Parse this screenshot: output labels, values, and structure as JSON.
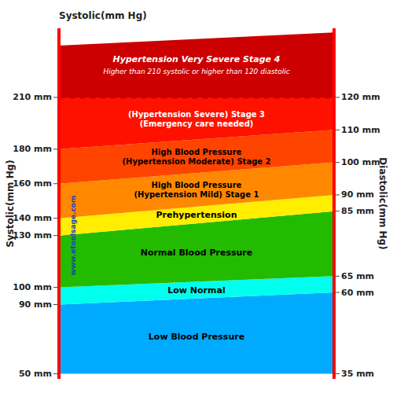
{
  "chart_data": {
    "type": "zones",
    "ylabel": "Systolic(mm Hg)",
    "y2label": "Diastolic(mm Hg)",
    "watermark": "www.etoolsage.com",
    "ylim": [
      47,
      250
    ],
    "yticks": [
      {
        "value": 50,
        "label": "50 mm"
      },
      {
        "value": 90,
        "label": "90 mm"
      },
      {
        "value": 100,
        "label": "100 mm"
      },
      {
        "value": 130,
        "label": "130 mm"
      },
      {
        "value": 140,
        "label": "140 mm"
      },
      {
        "value": 160,
        "label": "160 mm"
      },
      {
        "value": 180,
        "label": "180 mm"
      },
      {
        "value": 210,
        "label": "210 mm"
      }
    ],
    "y2lim": [
      33.40625,
      141.25
    ],
    "y2ticks": [
      {
        "value": 35,
        "label": "35 mm"
      },
      {
        "value": 60,
        "label": "60 mm"
      },
      {
        "value": 65,
        "label": "65 mm"
      },
      {
        "value": 85,
        "label": "85 mm"
      },
      {
        "value": 90,
        "label": "90 mm"
      },
      {
        "value": 100,
        "label": "100 mm"
      },
      {
        "value": 110,
        "label": "110 mm"
      },
      {
        "value": 120,
        "label": "120 mm"
      }
    ],
    "series": [
      {
        "name": "Low Blood Pressure",
        "color": "#00AAFF",
        "values": [
          50,
          90
        ],
        "y2_values": [
          35,
          60
        ]
      },
      {
        "name": "Low Normal",
        "color": "#00FFEE",
        "values": [
          90,
          100
        ],
        "y2_values": [
          60,
          65
        ]
      },
      {
        "name": "Normal Blood Pressure",
        "color": "#22BB00",
        "values": [
          100,
          130
        ],
        "y2_values": [
          65,
          85
        ]
      },
      {
        "name": "Prehypertension",
        "color": "#FFEE00",
        "values": [
          130,
          140
        ],
        "y2_values": [
          85,
          90
        ]
      },
      {
        "name": "High Blood Pressure\n(Hypertension Mild) Stage 1",
        "color": "#FF8800",
        "values": [
          140,
          160
        ],
        "y2_values": [
          90,
          100
        ]
      },
      {
        "name": "High Blood Pressure\n(Hypertension Moderate) Stage 2",
        "color": "#FF4400",
        "values": [
          160,
          180
        ],
        "y2_values": [
          100,
          110
        ]
      },
      {
        "name": "(Hypertension Severe) Stage 3\n(Emergency care needed)",
        "color": "#FF1100",
        "values": [
          180,
          210
        ],
        "y2_values": [
          110,
          120
        ]
      },
      {
        "name": "Hypertension Very Severe Stage 4",
        "color": "#CC0000",
        "values": [
          210,
          240
        ],
        "y2_values": [
          120,
          140
        ]
      }
    ],
    "annotations": [
      "Higher than 210 systolic or higher than 120 diastolic"
    ],
    "threshold": {
      "value": 210,
      "y2_value": 120,
      "color": "#CC0000",
      "line_style": "dashed"
    },
    "border": {
      "color": "#FF0000"
    },
    "grid": false
  }
}
